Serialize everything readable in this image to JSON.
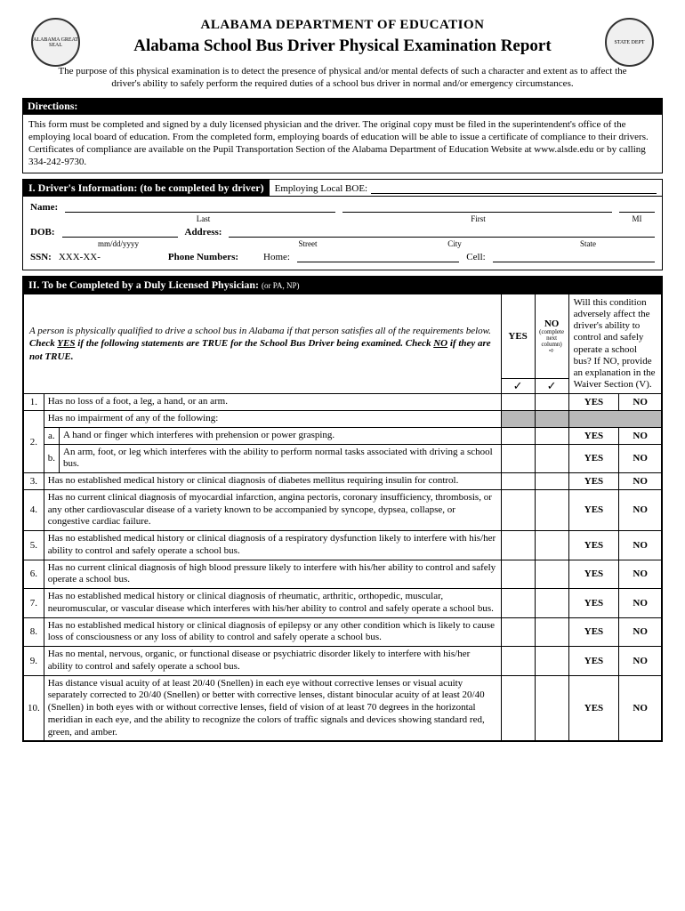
{
  "header": {
    "dept": "ALABAMA DEPARTMENT OF EDUCATION",
    "title": "Alabama School Bus Driver Physical Examination Report",
    "seal_left": "ALABAMA GREAT SEAL",
    "seal_right": "STATE DEPT"
  },
  "purpose": "The purpose of this physical examination is to detect the presence of physical and/or mental defects of such a character and extent as to affect the driver's ability to safely perform the required duties of a school bus driver in normal and/or emergency circumstances.",
  "directions": {
    "label": "Directions:",
    "text": "This form must be completed and signed by a duly licensed physician and the driver.  The original copy must be filed in the superintendent's office  of  the employing local board of education.  From the completed form, employing boards of education will be able to issue a certificate of compliance to their drivers.  Certificates of compliance are available on the Pupil Transportation Section of the Alabama Department of Education Website at www.alsde.edu or by calling 334-242-9730."
  },
  "section1": {
    "header": "I.  Driver's Information: (to be completed by driver)",
    "employing_label": "Employing Local BOE:",
    "name_label": "Name:",
    "last": "Last",
    "first": "First",
    "mi": "MI",
    "dob_label": "DOB:",
    "dob_hint": "mm/dd/yyyy",
    "address_label": "Address:",
    "street": "Street",
    "city": "City",
    "state": "State",
    "ssn_label": "SSN:",
    "ssn_value": "XXX-XX-",
    "phone_label": "Phone Numbers:",
    "home": "Home:",
    "cell": "Cell:"
  },
  "section2": {
    "header": "II.  To be Completed by a Duly Licensed Physician:",
    "header_sub": "(or PA, NP)",
    "instructions_line1": "A person is physically qualified to drive a school bus in Alabama if that person satisfies all of the requirements below.",
    "instructions_line2a": "Check ",
    "instructions_yes": "YES",
    "instructions_line2b": " if the following statements are TRUE for the School Bus Driver being examined.  Check ",
    "instructions_no": "NO",
    "instructions_line2c": " if they are not TRUE.",
    "yes_col": "YES",
    "no_col": "NO",
    "no_sub": "(complete next column)",
    "waiver_col": "Will this condition adversely affect the driver's ability to control and safely operate a school bus?  If NO, provide an explanation in the Waiver Section (V).",
    "yes": "YES",
    "no": "NO",
    "check": "✓",
    "arrow": "➪",
    "items": [
      {
        "num": "1.",
        "text": "Has no loss of a foot, a leg, a hand, or an arm."
      },
      {
        "num": "2.",
        "intro": "Has no impairment of any of the following:",
        "subs": [
          {
            "letter": "a.",
            "text": "A hand or finger which interferes with prehension or power grasping."
          },
          {
            "letter": "b.",
            "text": "An arm, foot, or leg which interferes with the ability to perform normal tasks associated with driving a school bus."
          }
        ]
      },
      {
        "num": "3.",
        "text": "Has no established medical history or clinical diagnosis of diabetes mellitus requiring insulin for control."
      },
      {
        "num": "4.",
        "text": "Has no current clinical diagnosis of myocardial infarction, angina pectoris, coronary insufficiency, thrombosis, or any other cardiovascular disease of a variety known to be accompanied by syncope, dypsea, collapse, or congestive cardiac failure."
      },
      {
        "num": "5.",
        "text": "Has no established medical history or clinical diagnosis of a respiratory dysfunction likely to interfere with his/her ability to control and safely operate a school bus."
      },
      {
        "num": "6.",
        "text": "Has no current clinical diagnosis of high blood pressure likely to interfere with his/her ability to control and safely operate a school bus."
      },
      {
        "num": "7.",
        "text": "Has no established medical history or clinical diagnosis of rheumatic, arthritic, orthopedic, muscular, neuromuscular, or vascular disease which interferes with his/her ability to control and safely operate a school bus."
      },
      {
        "num": "8.",
        "text": "Has no established medical history or clinical diagnosis of epilepsy or any other condition which is likely to cause loss of consciousness or any loss of ability to control and safely operate a school bus."
      },
      {
        "num": "9.",
        "text": "Has no mental, nervous, organic, or functional disease or psychiatric disorder likely to interfere with his/her ability to control and safely operate a school bus."
      },
      {
        "num": "10.",
        "text": "Has distance visual acuity of at least 20/40 (Snellen) in each eye without corrective lenses or visual acuity separately corrected to 20/40 (Snellen) or better with corrective lenses, distant binocular acuity of at least 20/40 (Snellen) in both eyes with or without corrective lenses, field of vision of at least 70 degrees in the horizontal meridian in each eye, and the ability to recognize the colors of traffic signals and devices showing standard red, green, and amber."
      }
    ]
  }
}
